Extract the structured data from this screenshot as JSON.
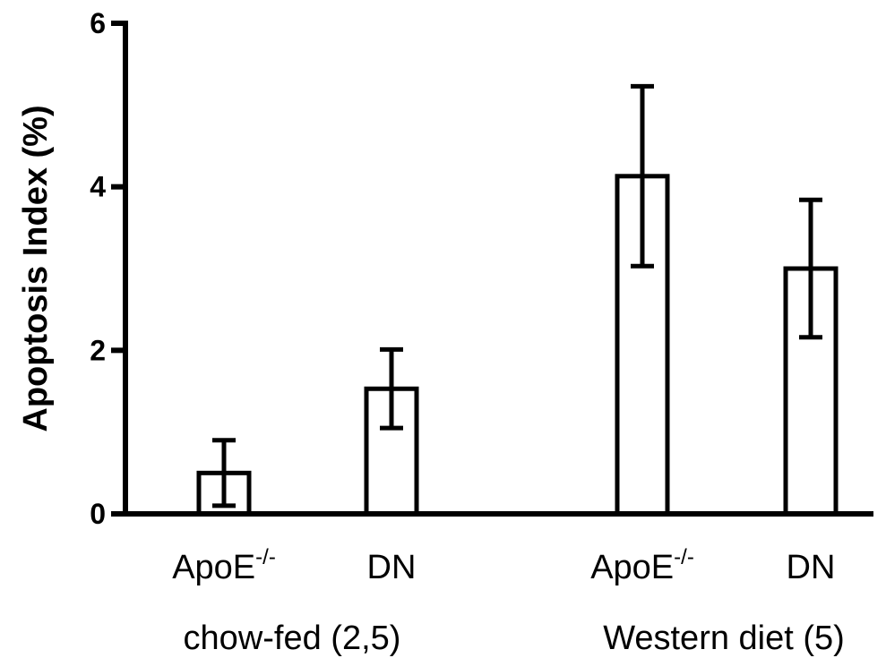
{
  "chart_data": {
    "type": "bar",
    "title": "",
    "ylabel": "Apoptosis Index (%)",
    "xlabel": "",
    "ylim": [
      0,
      6
    ],
    "yticks": [
      "0",
      "2",
      "4",
      "6"
    ],
    "grid": false,
    "legend": "none",
    "categories": [
      {
        "base": "ApoE",
        "sup": "-/-",
        "group": 0
      },
      {
        "base": "DN",
        "sup": "",
        "group": 0
      },
      {
        "base": "ApoE",
        "sup": "-/-",
        "group": 1
      },
      {
        "base": "DN",
        "sup": "",
        "group": 1
      }
    ],
    "groups": [
      "chow-fed (2,5)",
      "Western diet (5)"
    ],
    "values": [
      0.5,
      1.53,
      4.13,
      3.0
    ],
    "errors": [
      0.4,
      0.48,
      1.1,
      0.84
    ],
    "colors": {
      "bar_fill": "#ffffff",
      "stroke": "#000000"
    }
  }
}
